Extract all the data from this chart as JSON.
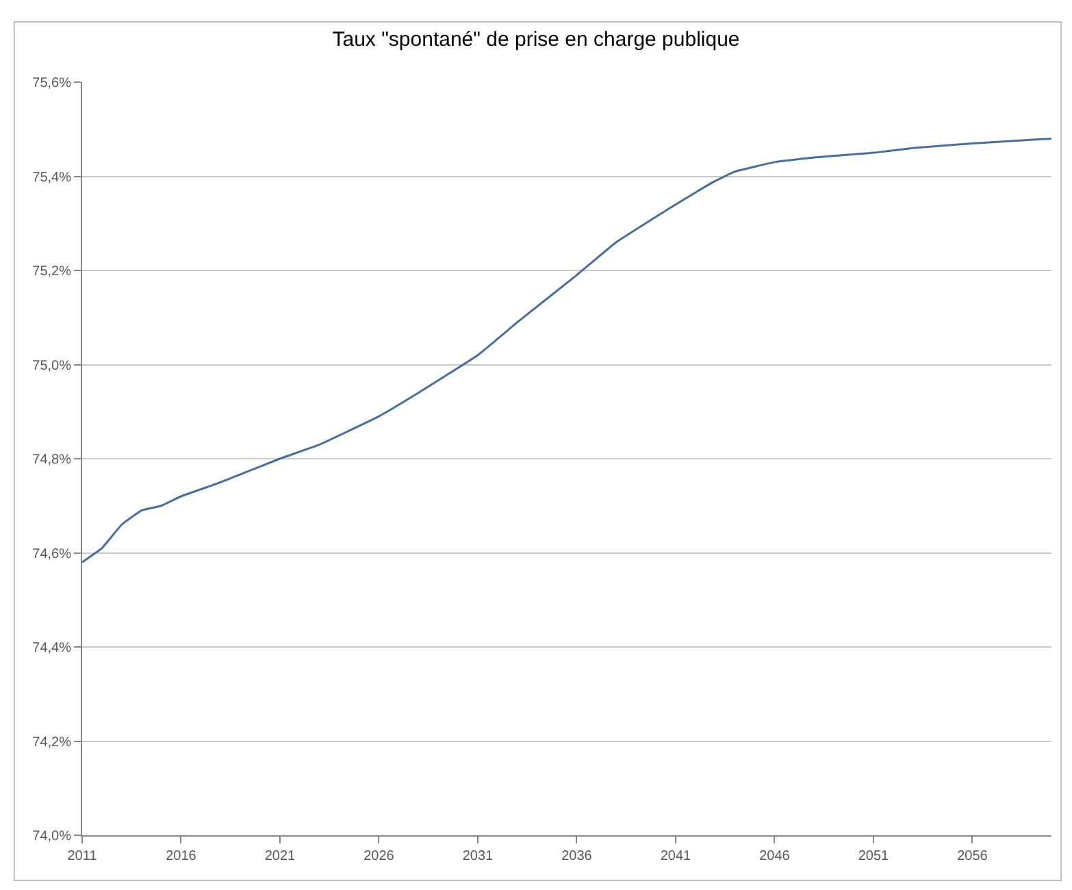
{
  "chart_data": {
    "type": "line",
    "title": "Taux \"spontané\" de prise en charge publique",
    "x": [
      2011,
      2012,
      2013,
      2014,
      2015,
      2016,
      2018,
      2021,
      2023,
      2026,
      2028,
      2031,
      2033,
      2036,
      2038,
      2041,
      2043,
      2044,
      2046,
      2048,
      2051,
      2053,
      2056,
      2060
    ],
    "series": [
      {
        "color": "#4a6e9c",
        "values": [
          74.58,
          74.61,
          74.66,
          74.69,
          74.7,
          74.72,
          74.75,
          74.8,
          74.83,
          74.89,
          74.94,
          75.02,
          75.09,
          75.19,
          75.26,
          75.34,
          75.39,
          75.41,
          75.43,
          75.44,
          75.45,
          75.46,
          75.47,
          75.48
        ]
      }
    ],
    "xlim": [
      2011,
      2060
    ],
    "xticks": [
      2011,
      2016,
      2021,
      2026,
      2031,
      2036,
      2041,
      2046,
      2051,
      2056
    ],
    "ylim": [
      74.0,
      75.6
    ],
    "yticks": [
      {
        "value": 74.0,
        "label": "74,0%"
      },
      {
        "value": 74.2,
        "label": "74,2%"
      },
      {
        "value": 74.4,
        "label": "74,4%"
      },
      {
        "value": 74.6,
        "label": "74,6%"
      },
      {
        "value": 74.8,
        "label": "74,8%"
      },
      {
        "value": 75.0,
        "label": "75,0%"
      },
      {
        "value": 75.2,
        "label": "75,2%"
      },
      {
        "value": 75.4,
        "label": "75,4%"
      },
      {
        "value": 75.6,
        "label": "75,6%"
      }
    ],
    "grid": "y",
    "marker": "none",
    "line_style": "solid"
  }
}
